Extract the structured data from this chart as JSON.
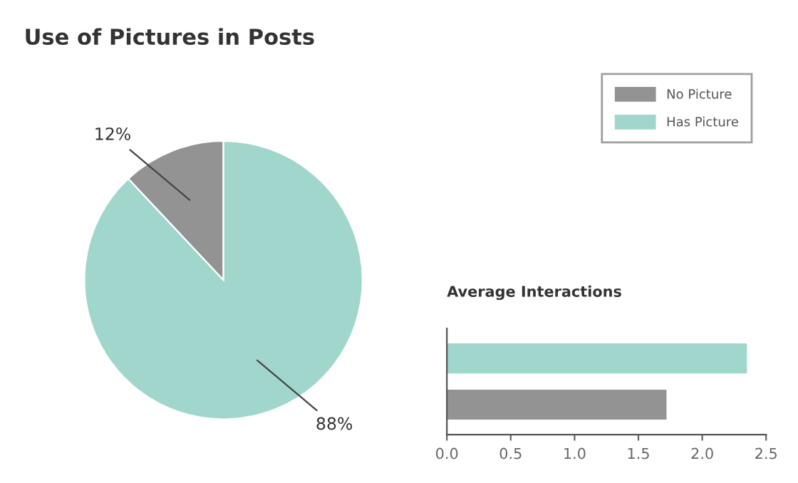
{
  "chart_data": [
    {
      "type": "pie",
      "title": "Use of Pictures in Posts",
      "categories": [
        "No Picture",
        "Has Picture"
      ],
      "values": [
        12,
        88
      ],
      "colors": [
        "#939393",
        "#a0d6cc"
      ],
      "value_labels": [
        "12%",
        "88%"
      ],
      "legend": "top right"
    },
    {
      "type": "bar",
      "orientation": "horizontal",
      "title": "Average Interactions",
      "categories": [
        null,
        null
      ],
      "values": [
        2.35,
        1.72
      ],
      "colors": [
        "#a0d6cc",
        "#939393"
      ],
      "xlim": [
        0,
        2.5
      ],
      "xticks": [
        {
          "value": 0,
          "label": "0.0"
        },
        {
          "value": 0.5,
          "label": "0.5"
        },
        {
          "value": 1,
          "label": "1.0"
        },
        {
          "value": 1.5,
          "label": "1.5"
        },
        {
          "value": 2,
          "label": "2.0"
        },
        {
          "value": 2.5,
          "label": "2.5"
        }
      ],
      "tick_labels": "x",
      "grid": false
    }
  ]
}
